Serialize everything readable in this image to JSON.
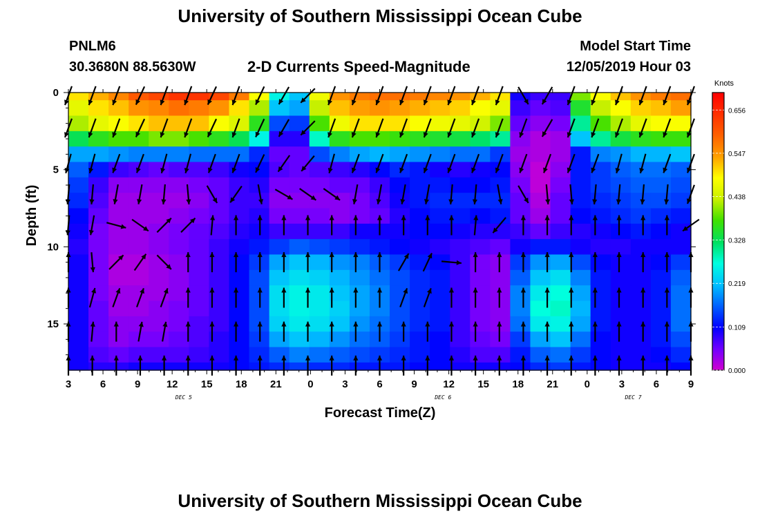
{
  "title": "University of Southern Mississippi Ocean Cube",
  "footer_title": "University of Southern Mississippi Ocean Cube",
  "station": {
    "id": "PNLM6",
    "coords": "30.3680N 88.5630W"
  },
  "model": {
    "label": "Model Start Time",
    "start": "12/05/2019 Hour 03"
  },
  "chart_data": {
    "type": "heatmap",
    "subtitle": "2-D Currents Speed-Magnitude",
    "xlabel": "Forecast Time(Z)",
    "ylabel": "Depth (ft)",
    "x_range_hours": [
      0,
      54
    ],
    "x_ticks": [
      "3",
      "6",
      "9",
      "12",
      "15",
      "18",
      "21",
      "0",
      "3",
      "6",
      "9",
      "12",
      "15",
      "18",
      "21",
      "0",
      "3",
      "6",
      "9"
    ],
    "date_labels": [
      {
        "text": "DEC 5",
        "hour": 10
      },
      {
        "text": "DEC 6",
        "hour": 32.5
      },
      {
        "text": "DEC 7",
        "hour": 49
      }
    ],
    "y_range_ft": [
      0,
      18
    ],
    "y_ticks": [
      "0",
      "5",
      "10",
      "15"
    ],
    "colorbar": {
      "unit": "Knots",
      "min": 0.0,
      "max": 0.7,
      "tick_labels": [
        "0.656",
        "0.547",
        "0.438",
        "0.328",
        "0.219",
        "0.109",
        "0.000"
      ],
      "tick_values": [
        0.656,
        0.547,
        0.438,
        0.328,
        0.219,
        0.109,
        0.0
      ],
      "colors": [
        "#d000d0",
        "#7000ff",
        "#0000ff",
        "#0060ff",
        "#00c0ff",
        "#00ffe0",
        "#00e060",
        "#40e000",
        "#c8f000",
        "#ffff00",
        "#ffa000",
        "#ff6000",
        "#ff3000",
        "#ff0000"
      ]
    },
    "grid_rows_ft": [
      0,
      1,
      2,
      3,
      4,
      5,
      6,
      7,
      8,
      9,
      10,
      11,
      12,
      13,
      14,
      15,
      16,
      17,
      18
    ],
    "speed_grid": [
      [
        0.5,
        0.53,
        0.56,
        0.6,
        0.62,
        0.64,
        0.64,
        0.62,
        0.57,
        0.48,
        0.26,
        0.22,
        0.47,
        0.55,
        0.57,
        0.58,
        0.58,
        0.57,
        0.56,
        0.55,
        0.53,
        0.5,
        0.1,
        0.08,
        0.08,
        0.4,
        0.48,
        0.52,
        0.55,
        0.57,
        0.58
      ],
      [
        0.46,
        0.5,
        0.52,
        0.55,
        0.56,
        0.58,
        0.57,
        0.55,
        0.5,
        0.42,
        0.22,
        0.2,
        0.43,
        0.52,
        0.54,
        0.55,
        0.54,
        0.53,
        0.52,
        0.51,
        0.48,
        0.46,
        0.08,
        0.06,
        0.07,
        0.35,
        0.43,
        0.48,
        0.51,
        0.52,
        0.54
      ],
      [
        0.42,
        0.46,
        0.48,
        0.5,
        0.52,
        0.52,
        0.52,
        0.48,
        0.45,
        0.36,
        0.15,
        0.14,
        0.38,
        0.47,
        0.5,
        0.5,
        0.5,
        0.48,
        0.47,
        0.46,
        0.44,
        0.4,
        0.06,
        0.04,
        0.05,
        0.3,
        0.38,
        0.42,
        0.46,
        0.48,
        0.48
      ],
      [
        0.33,
        0.36,
        0.38,
        0.38,
        0.4,
        0.4,
        0.38,
        0.36,
        0.33,
        0.26,
        0.09,
        0.09,
        0.28,
        0.36,
        0.38,
        0.38,
        0.37,
        0.36,
        0.35,
        0.34,
        0.32,
        0.3,
        0.04,
        0.02,
        0.03,
        0.22,
        0.3,
        0.34,
        0.36,
        0.37,
        0.37
      ],
      [
        0.2,
        0.2,
        0.19,
        0.18,
        0.18,
        0.18,
        0.17,
        0.17,
        0.17,
        0.13,
        0.06,
        0.06,
        0.15,
        0.18,
        0.2,
        0.21,
        0.2,
        0.19,
        0.18,
        0.17,
        0.17,
        0.14,
        0.03,
        0.02,
        0.03,
        0.12,
        0.18,
        0.19,
        0.21,
        0.21,
        0.22
      ],
      [
        0.16,
        0.12,
        0.08,
        0.07,
        0.06,
        0.07,
        0.07,
        0.08,
        0.1,
        0.11,
        0.07,
        0.06,
        0.07,
        0.08,
        0.09,
        0.11,
        0.13,
        0.12,
        0.1,
        0.09,
        0.1,
        0.11,
        0.04,
        0.01,
        0.04,
        0.12,
        0.14,
        0.16,
        0.17,
        0.17,
        0.16
      ],
      [
        0.14,
        0.08,
        0.04,
        0.04,
        0.04,
        0.04,
        0.05,
        0.06,
        0.08,
        0.09,
        0.05,
        0.05,
        0.05,
        0.06,
        0.06,
        0.08,
        0.11,
        0.12,
        0.12,
        0.11,
        0.11,
        0.12,
        0.05,
        0.01,
        0.05,
        0.12,
        0.14,
        0.15,
        0.16,
        0.16,
        0.15
      ],
      [
        0.13,
        0.07,
        0.03,
        0.03,
        0.03,
        0.03,
        0.04,
        0.06,
        0.08,
        0.08,
        0.04,
        0.04,
        0.04,
        0.04,
        0.05,
        0.07,
        0.1,
        0.12,
        0.13,
        0.13,
        0.13,
        0.13,
        0.06,
        0.02,
        0.06,
        0.12,
        0.13,
        0.14,
        0.15,
        0.15,
        0.14
      ],
      [
        0.11,
        0.06,
        0.03,
        0.03,
        0.03,
        0.04,
        0.05,
        0.06,
        0.08,
        0.09,
        0.05,
        0.05,
        0.05,
        0.04,
        0.05,
        0.06,
        0.09,
        0.11,
        0.12,
        0.12,
        0.11,
        0.12,
        0.06,
        0.03,
        0.06,
        0.11,
        0.12,
        0.13,
        0.14,
        0.13,
        0.12
      ],
      [
        0.1,
        0.05,
        0.03,
        0.03,
        0.04,
        0.05,
        0.06,
        0.07,
        0.09,
        0.1,
        0.08,
        0.08,
        0.08,
        0.08,
        0.1,
        0.1,
        0.1,
        0.11,
        0.11,
        0.1,
        0.09,
        0.09,
        0.08,
        0.06,
        0.08,
        0.09,
        0.1,
        0.11,
        0.12,
        0.11,
        0.1
      ],
      [
        0.09,
        0.05,
        0.03,
        0.03,
        0.04,
        0.05,
        0.06,
        0.08,
        0.1,
        0.12,
        0.14,
        0.16,
        0.15,
        0.14,
        0.13,
        0.12,
        0.11,
        0.1,
        0.09,
        0.08,
        0.07,
        0.06,
        0.1,
        0.12,
        0.12,
        0.1,
        0.09,
        0.09,
        0.1,
        0.1,
        0.1
      ],
      [
        0.1,
        0.05,
        0.02,
        0.02,
        0.03,
        0.04,
        0.06,
        0.08,
        0.11,
        0.14,
        0.2,
        0.22,
        0.21,
        0.19,
        0.18,
        0.16,
        0.14,
        0.12,
        0.11,
        0.08,
        0.05,
        0.04,
        0.14,
        0.19,
        0.2,
        0.15,
        0.11,
        0.1,
        0.1,
        0.11,
        0.14
      ],
      [
        0.1,
        0.05,
        0.02,
        0.02,
        0.03,
        0.04,
        0.06,
        0.08,
        0.11,
        0.15,
        0.22,
        0.24,
        0.23,
        0.21,
        0.19,
        0.17,
        0.15,
        0.13,
        0.12,
        0.08,
        0.05,
        0.04,
        0.16,
        0.22,
        0.24,
        0.18,
        0.12,
        0.1,
        0.1,
        0.12,
        0.16
      ],
      [
        0.1,
        0.05,
        0.03,
        0.03,
        0.03,
        0.04,
        0.06,
        0.08,
        0.11,
        0.15,
        0.24,
        0.26,
        0.25,
        0.22,
        0.2,
        0.18,
        0.15,
        0.13,
        0.12,
        0.08,
        0.05,
        0.04,
        0.18,
        0.25,
        0.27,
        0.2,
        0.12,
        0.1,
        0.1,
        0.12,
        0.17
      ],
      [
        0.1,
        0.06,
        0.03,
        0.03,
        0.04,
        0.05,
        0.06,
        0.08,
        0.11,
        0.15,
        0.24,
        0.26,
        0.25,
        0.23,
        0.2,
        0.18,
        0.15,
        0.13,
        0.12,
        0.08,
        0.05,
        0.04,
        0.18,
        0.27,
        0.28,
        0.21,
        0.12,
        0.1,
        0.1,
        0.12,
        0.17
      ],
      [
        0.1,
        0.06,
        0.04,
        0.04,
        0.04,
        0.05,
        0.07,
        0.08,
        0.11,
        0.15,
        0.23,
        0.25,
        0.24,
        0.22,
        0.19,
        0.17,
        0.15,
        0.13,
        0.12,
        0.08,
        0.05,
        0.04,
        0.17,
        0.25,
        0.26,
        0.2,
        0.12,
        0.1,
        0.1,
        0.12,
        0.17
      ],
      [
        0.1,
        0.06,
        0.04,
        0.05,
        0.05,
        0.06,
        0.07,
        0.09,
        0.11,
        0.14,
        0.2,
        0.22,
        0.21,
        0.19,
        0.17,
        0.16,
        0.14,
        0.12,
        0.11,
        0.08,
        0.06,
        0.05,
        0.14,
        0.2,
        0.22,
        0.17,
        0.11,
        0.1,
        0.1,
        0.12,
        0.15
      ],
      [
        0.1,
        0.07,
        0.06,
        0.07,
        0.07,
        0.07,
        0.08,
        0.09,
        0.11,
        0.13,
        0.16,
        0.18,
        0.17,
        0.16,
        0.15,
        0.14,
        0.13,
        0.12,
        0.11,
        0.09,
        0.07,
        0.07,
        0.12,
        0.16,
        0.17,
        0.14,
        0.11,
        0.1,
        0.1,
        0.11,
        0.13
      ],
      [
        0.1,
        0.09,
        0.09,
        0.1,
        0.1,
        0.1,
        0.1,
        0.1,
        0.11,
        0.12,
        0.13,
        0.14,
        0.13,
        0.13,
        0.12,
        0.12,
        0.12,
        0.11,
        0.11,
        0.1,
        0.1,
        0.1,
        0.11,
        0.13,
        0.14,
        0.12,
        0.11,
        0.1,
        0.1,
        0.1,
        0.11
      ]
    ],
    "vector_rows_ft": [
      0.2,
      2.3,
      4.6,
      6.6,
      8.6,
      11.0,
      13.3,
      15.5,
      17.7
    ],
    "vector_directions_deg": [
      [
        200,
        200,
        200,
        205,
        200,
        200,
        205,
        200,
        205,
        210,
        225,
        200,
        200,
        200,
        200,
        200,
        200,
        200,
        200,
        150,
        210,
        200,
        200,
        200,
        200,
        200,
        200
      ],
      [
        200,
        200,
        200,
        205,
        200,
        200,
        205,
        200,
        205,
        210,
        225,
        200,
        200,
        200,
        200,
        200,
        200,
        200,
        200,
        200,
        210,
        200,
        200,
        200,
        200,
        200,
        200
      ],
      [
        195,
        195,
        200,
        200,
        195,
        195,
        200,
        200,
        205,
        215,
        220,
        195,
        200,
        200,
        200,
        200,
        200,
        200,
        200,
        200,
        200,
        200,
        200,
        195,
        195,
        200,
        200
      ],
      [
        185,
        185,
        190,
        190,
        185,
        175,
        150,
        215,
        170,
        120,
        125,
        125,
        190,
        190,
        190,
        190,
        185,
        185,
        170,
        150,
        175,
        175,
        185,
        185,
        185,
        185,
        200
      ],
      [
        185,
        190,
        105,
        125,
        45,
        45,
        5,
        0,
        0,
        0,
        0,
        0,
        0,
        0,
        0,
        0,
        0,
        5,
        220,
        0,
        0,
        0,
        0,
        0,
        0,
        0,
        235
      ],
      [
        0,
        175,
        45,
        35,
        135,
        0,
        0,
        0,
        0,
        0,
        0,
        0,
        0,
        0,
        30,
        25,
        95,
        0,
        0,
        0,
        0,
        0,
        0,
        0,
        0,
        0,
        0
      ],
      [
        0,
        15,
        20,
        20,
        20,
        0,
        0,
        0,
        0,
        0,
        0,
        0,
        0,
        0,
        20,
        20,
        0,
        0,
        0,
        0,
        0,
        0,
        0,
        0,
        0,
        0,
        0
      ],
      [
        0,
        5,
        0,
        10,
        10,
        0,
        0,
        0,
        0,
        0,
        0,
        0,
        0,
        0,
        0,
        0,
        0,
        0,
        0,
        0,
        0,
        0,
        0,
        0,
        0,
        0,
        0
      ],
      [
        0,
        0,
        0,
        0,
        0,
        0,
        0,
        0,
        0,
        0,
        0,
        0,
        0,
        0,
        0,
        0,
        0,
        0,
        0,
        0,
        0,
        0,
        0,
        0,
        0,
        0,
        0
      ]
    ]
  }
}
